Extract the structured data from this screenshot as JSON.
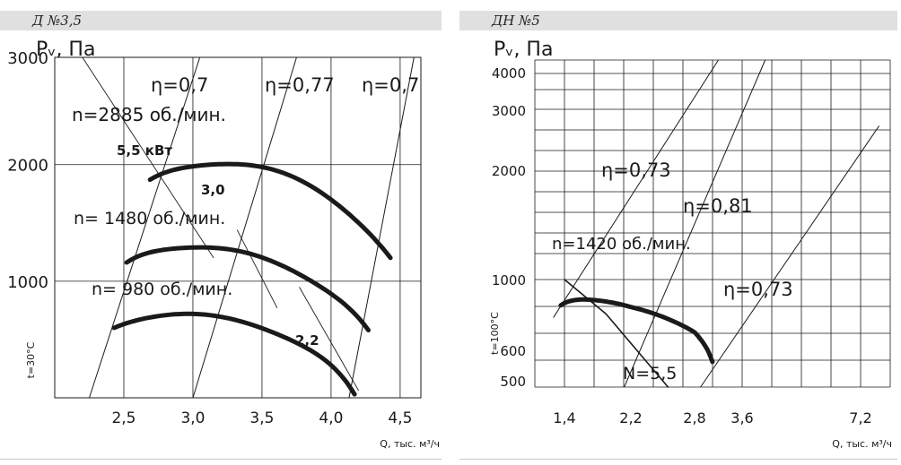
{
  "panels": {
    "left": {
      "title": "Д №3,5"
    },
    "right": {
      "title": "ДН №5"
    }
  },
  "chart_data": [
    {
      "type": "line",
      "title": "Д №3,5",
      "ylabel": "Pᵥ, Па",
      "xlabel": "Q, тыс. м³/ч",
      "temp_label": "t=30°C",
      "ylim": [
        0,
        3000
      ],
      "xlim": [
        2.0,
        4.65
      ],
      "x_ticks": [
        "2,5",
        "3,0",
        "3,5",
        "4,0",
        "4,5"
      ],
      "x_tick_values": [
        2.5,
        3.0,
        3.5,
        4.0,
        4.5
      ],
      "y_ticks": [
        "1000",
        "2000",
        "3000"
      ],
      "y_tick_values": [
        1000,
        2000,
        3000
      ],
      "grid": true,
      "series": [
        {
          "name": "n=2885 об./мин.",
          "x": [
            2.69,
            3.0,
            3.25,
            3.6,
            4.0,
            4.2,
            4.43
          ],
          "y": [
            1870,
            1985,
            2005,
            1950,
            1700,
            1500,
            1200
          ]
        },
        {
          "name": "n= 1480 об./мин.",
          "x": [
            2.52,
            2.7,
            3.05,
            3.4,
            3.8,
            4.1,
            4.27
          ],
          "y": [
            1160,
            1250,
            1290,
            1240,
            1040,
            800,
            580
          ]
        },
        {
          "name": "n= 980 об./мин.",
          "x": [
            2.43,
            2.65,
            2.95,
            3.3,
            3.7,
            4.0,
            4.17
          ],
          "y": [
            600,
            680,
            720,
            670,
            500,
            280,
            30
          ]
        }
      ],
      "efficiency_lines": [
        {
          "label": "η=0,7",
          "x": [
            2.25,
            3.05
          ],
          "y": [
            0,
            2920
          ]
        },
        {
          "label": "η=0,77",
          "x": [
            3.0,
            3.75
          ],
          "y": [
            0,
            2920
          ]
        },
        {
          "label": "η=0,7",
          "x": [
            4.13,
            4.6
          ],
          "y": [
            0,
            2920
          ]
        }
      ],
      "power_lines": [
        {
          "label": "5,5 кВт",
          "x": [
            2.2,
            3.15
          ],
          "y": [
            2920,
            1200
          ]
        },
        {
          "label": "3,0",
          "x": [
            3.32,
            3.61
          ],
          "y": [
            1440,
            770
          ]
        },
        {
          "label": "2,2",
          "x": [
            3.77,
            4.2
          ],
          "y": [
            950,
            60
          ]
        }
      ],
      "annotations": [
        "η=0,7",
        "η=0,77",
        "η=0,7",
        "n=2885 об./мин.",
        "5,5 кВт",
        "3,0",
        "n= 1480 об./мин.",
        "n= 980 об./мин.",
        "2,2"
      ]
    },
    {
      "type": "line",
      "title": "ДН №5",
      "ylabel": "Pᵥ, Па",
      "xlabel": "Q, тыс. м³/ч",
      "temp_label": "t=100°C",
      "y_scale": "log",
      "ylim": [
        470,
        4400
      ],
      "x_ticks": [
        "1,4",
        "2,2",
        "2,8",
        "3,6",
        "7,2"
      ],
      "y_ticks": [
        "500",
        "600",
        "1000",
        "2000",
        "3000",
        "4000"
      ],
      "y_tick_values": [
        500,
        600,
        1000,
        2000,
        3000,
        4000
      ],
      "grid": true,
      "series": [
        {
          "name": "n=1420 об./мин.",
          "x": [
            1.35,
            1.5,
            1.8,
            2.2,
            2.6,
            2.9,
            3.1
          ],
          "y": [
            830,
            860,
            860,
            820,
            740,
            650,
            560
          ]
        }
      ],
      "efficiency_lines": [
        {
          "label": "η=0,73",
          "x": [
            1.25,
            3.2
          ],
          "y": [
            760,
            4400
          ]
        },
        {
          "label": "η=0,81",
          "x": [
            2.12,
            4.3
          ],
          "y": [
            470,
            4400
          ]
        },
        {
          "label": "η=0,73",
          "x": [
            2.9,
            7.7
          ],
          "y": [
            470,
            2700
          ]
        }
      ],
      "power_lines": [
        {
          "label": "N=5,5",
          "x": [
            1.4,
            2.55
          ],
          "y": [
            1000,
            470
          ]
        }
      ],
      "annotations": [
        "η=0,73",
        "η=0,81",
        "n=1420 об./мин.",
        "η=0,73",
        "N=5,5"
      ]
    }
  ]
}
